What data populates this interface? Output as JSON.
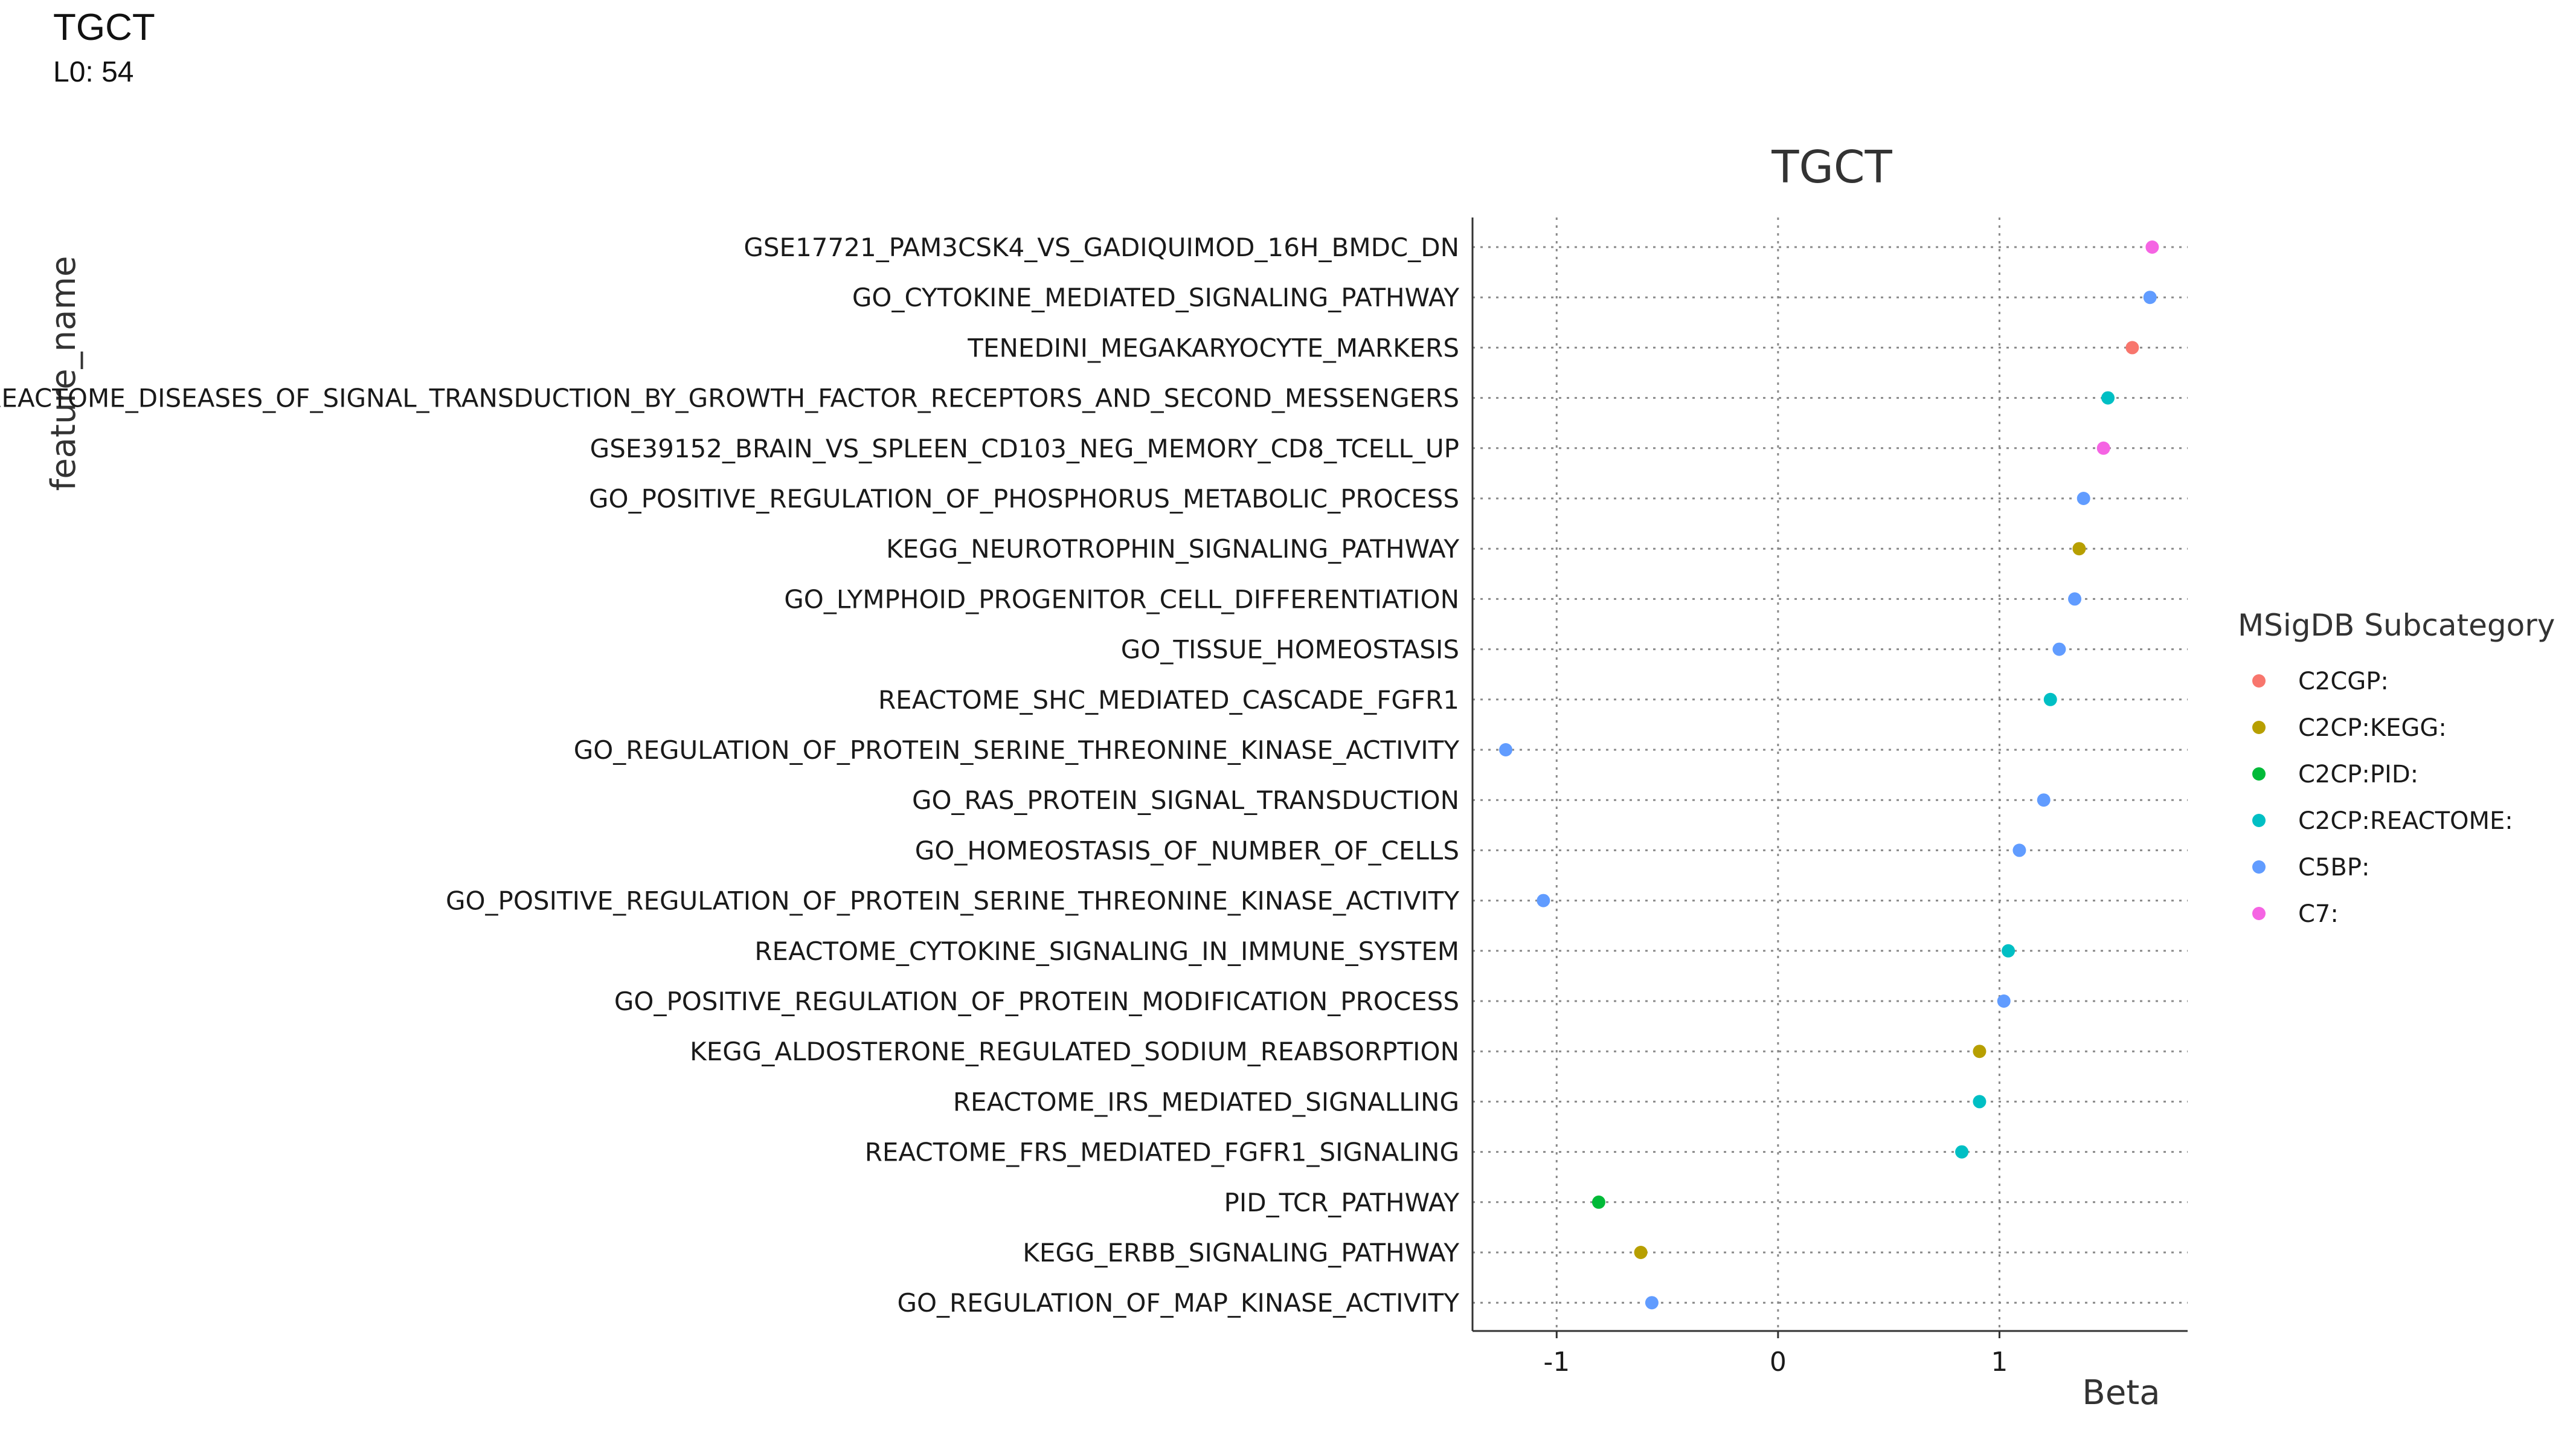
{
  "header": {
    "title": "TGCT",
    "subtitle": "L0: 54"
  },
  "colors": {
    "C2CGP:": "#F8766D",
    "C2CP:KEGG:": "#B79F00",
    "C2CP:PID:": "#00BA38",
    "C2CP:REACTOME:": "#00BFC4",
    "C5BP:": "#619CFF",
    "C7:": "#F564E3",
    "grid": "#8a8a8a",
    "axis": "#333333",
    "text": "#1a1a1a"
  },
  "chart_data": {
    "type": "scatter",
    "title": "TGCT",
    "xlabel": "Beta",
    "ylabel": "feature_name",
    "xlim": [
      -1.38,
      1.85
    ],
    "xticks": [
      "-1",
      "0",
      "1"
    ],
    "xtick_values": [
      -1,
      0,
      1
    ],
    "grid": true,
    "legend": {
      "title": "MSigDB Subcategory",
      "placement": "right",
      "entries": [
        "C2CGP:",
        "C2CP:KEGG:",
        "C2CP:PID:",
        "C2CP:REACTOME:",
        "C5BP:",
        "C7:"
      ]
    },
    "points": [
      {
        "feature": "GSE17721_PAM3CSK4_VS_GADIQUIMOD_16H_BMDC_DN",
        "beta": 1.69,
        "category": "C7:"
      },
      {
        "feature": "GO_CYTOKINE_MEDIATED_SIGNALING_PATHWAY",
        "beta": 1.68,
        "category": "C5BP:"
      },
      {
        "feature": "TENEDINI_MEGAKARYOCYTE_MARKERS",
        "beta": 1.6,
        "category": "C2CGP:"
      },
      {
        "feature": "REACTOME_DISEASES_OF_SIGNAL_TRANSDUCTION_BY_GROWTH_FACTOR_RECEPTORS_AND_SECOND_MESSENGERS",
        "beta": 1.49,
        "category": "C2CP:REACTOME:"
      },
      {
        "feature": "GSE39152_BRAIN_VS_SPLEEN_CD103_NEG_MEMORY_CD8_TCELL_UP",
        "beta": 1.47,
        "category": "C7:"
      },
      {
        "feature": "GO_POSITIVE_REGULATION_OF_PHOSPHORUS_METABOLIC_PROCESS",
        "beta": 1.38,
        "category": "C5BP:"
      },
      {
        "feature": "KEGG_NEUROTROPHIN_SIGNALING_PATHWAY",
        "beta": 1.36,
        "category": "C2CP:KEGG:"
      },
      {
        "feature": "GO_LYMPHOID_PROGENITOR_CELL_DIFFERENTIATION",
        "beta": 1.34,
        "category": "C5BP:"
      },
      {
        "feature": "GO_TISSUE_HOMEOSTASIS",
        "beta": 1.27,
        "category": "C5BP:"
      },
      {
        "feature": "REACTOME_SHC_MEDIATED_CASCADE_FGFR1",
        "beta": 1.23,
        "category": "C2CP:REACTOME:"
      },
      {
        "feature": "GO_REGULATION_OF_PROTEIN_SERINE_THREONINE_KINASE_ACTIVITY",
        "beta": -1.23,
        "category": "C5BP:"
      },
      {
        "feature": "GO_RAS_PROTEIN_SIGNAL_TRANSDUCTION",
        "beta": 1.2,
        "category": "C5BP:"
      },
      {
        "feature": "GO_HOMEOSTASIS_OF_NUMBER_OF_CELLS",
        "beta": 1.09,
        "category": "C5BP:"
      },
      {
        "feature": "GO_POSITIVE_REGULATION_OF_PROTEIN_SERINE_THREONINE_KINASE_ACTIVITY",
        "beta": -1.06,
        "category": "C5BP:"
      },
      {
        "feature": "REACTOME_CYTOKINE_SIGNALING_IN_IMMUNE_SYSTEM",
        "beta": 1.04,
        "category": "C2CP:REACTOME:"
      },
      {
        "feature": "GO_POSITIVE_REGULATION_OF_PROTEIN_MODIFICATION_PROCESS",
        "beta": 1.02,
        "category": "C5BP:"
      },
      {
        "feature": "KEGG_ALDOSTERONE_REGULATED_SODIUM_REABSORPTION",
        "beta": 0.91,
        "category": "C2CP:KEGG:"
      },
      {
        "feature": "REACTOME_IRS_MEDIATED_SIGNALLING",
        "beta": 0.91,
        "category": "C2CP:REACTOME:"
      },
      {
        "feature": "REACTOME_FRS_MEDIATED_FGFR1_SIGNALING",
        "beta": 0.83,
        "category": "C2CP:REACTOME:"
      },
      {
        "feature": "PID_TCR_PATHWAY",
        "beta": -0.81,
        "category": "C2CP:PID:"
      },
      {
        "feature": "KEGG_ERBB_SIGNALING_PATHWAY",
        "beta": -0.62,
        "category": "C2CP:KEGG:"
      },
      {
        "feature": "GO_REGULATION_OF_MAP_KINASE_ACTIVITY",
        "beta": -0.57,
        "category": "C5BP:"
      }
    ]
  }
}
